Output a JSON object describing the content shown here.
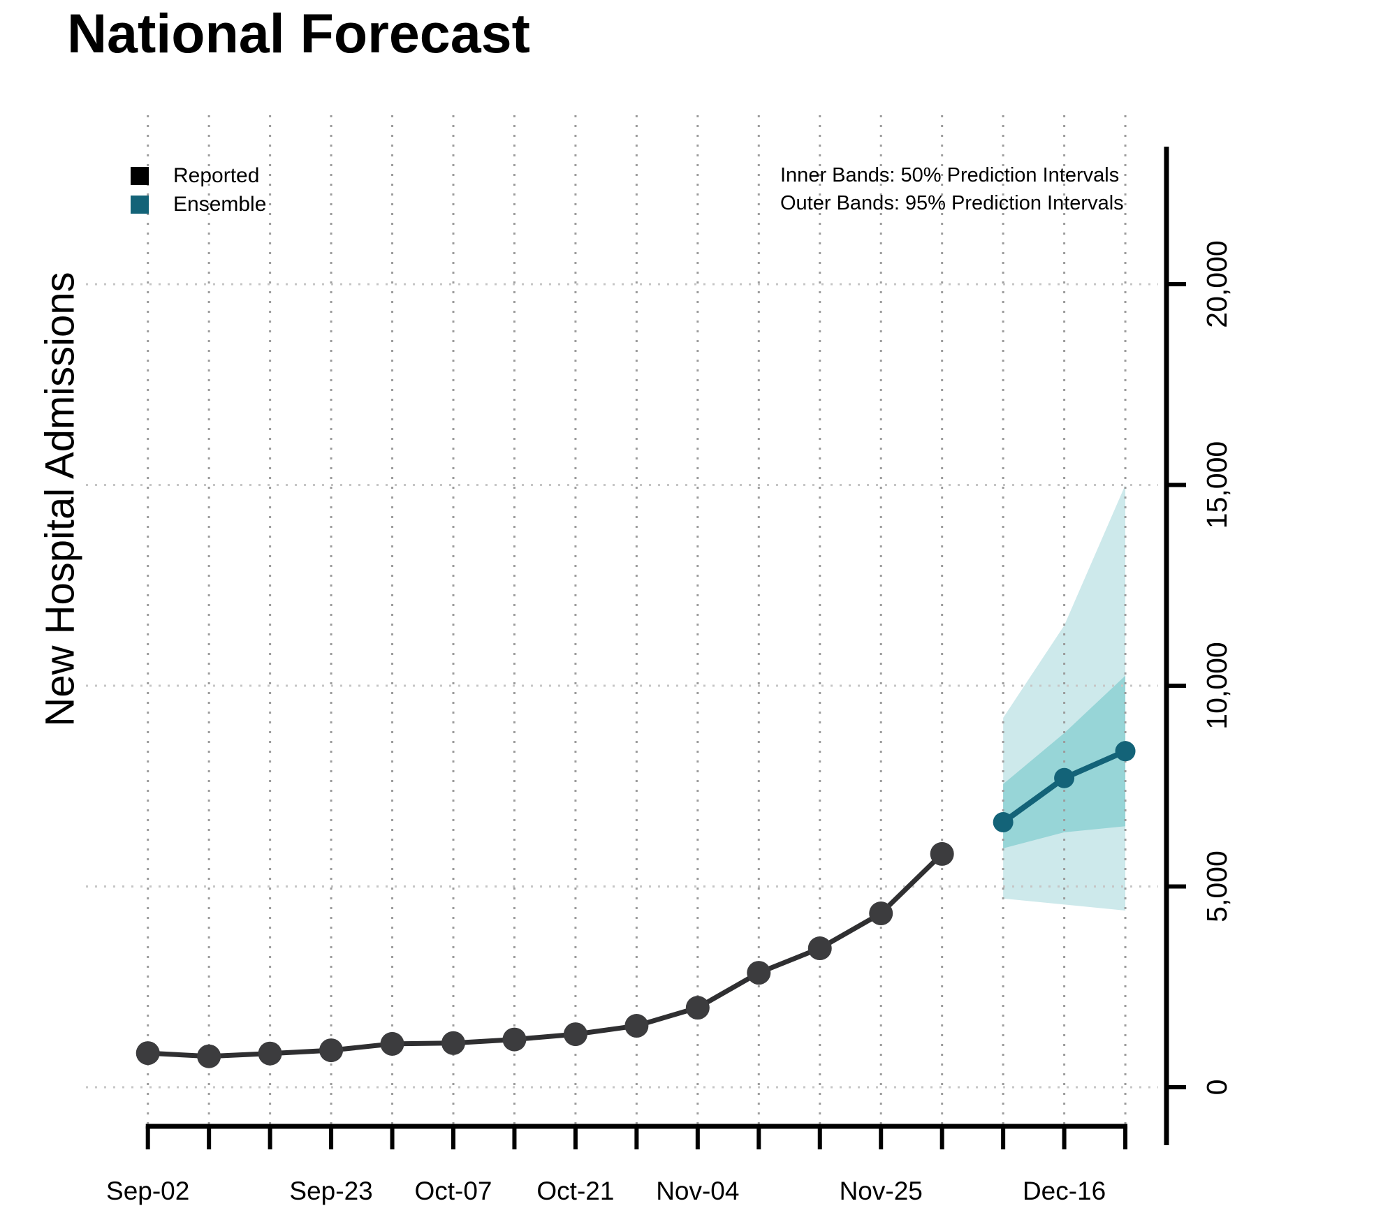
{
  "title": "National Forecast",
  "ylabel": "New Hospital Admissions",
  "legend": [
    {
      "label": "Reported",
      "color": "#000000"
    },
    {
      "label": "Ensemble",
      "color": "#136378"
    }
  ],
  "annotations": [
    "Inner Bands: 50% Prediction Intervals",
    "Outer Bands: 95% Prediction Intervals"
  ],
  "chart_data": {
    "type": "line",
    "title": "National Forecast",
    "xlabel": "",
    "ylabel": "New Hospital Admissions",
    "x_ticks": [
      "Sep-02",
      "Sep-09",
      "Sep-16",
      "Sep-23",
      "Sep-30",
      "Oct-07",
      "Oct-14",
      "Oct-21",
      "Oct-28",
      "Nov-04",
      "Nov-11",
      "Nov-18",
      "Nov-25",
      "Dec-02",
      "Dec-09",
      "Dec-16",
      "Dec-23"
    ],
    "x_label_indices": [
      0,
      3,
      5,
      7,
      9,
      12,
      15
    ],
    "x_label_texts": [
      "Sep-02",
      "Sep-23",
      "Oct-07",
      "Oct-21",
      "Nov-04",
      "Nov-25",
      "Dec-16"
    ],
    "y_ticks": [
      0,
      5000,
      10000,
      15000,
      20000
    ],
    "y_tick_labels": [
      "0",
      "5,000",
      "10,000",
      "15,000",
      "20,000"
    ],
    "ylim": [
      0,
      23400
    ],
    "grid": true,
    "legend_position": "top-left",
    "series": [
      {
        "name": "Reported",
        "color": "#3c3c3e",
        "line_color": "#2f2f31",
        "x": [
          "Sep-02",
          "Sep-09",
          "Sep-16",
          "Sep-23",
          "Sep-30",
          "Oct-07",
          "Oct-14",
          "Oct-21",
          "Oct-28",
          "Nov-04",
          "Nov-11",
          "Nov-18",
          "Nov-25",
          "Dec-02"
        ],
        "values": [
          850,
          770,
          840,
          920,
          1080,
          1100,
          1190,
          1320,
          1530,
          1980,
          2850,
          3460,
          4330,
          5810
        ]
      },
      {
        "name": "Ensemble",
        "color": "#136378",
        "line_color": "#136378",
        "x": [
          "Dec-09",
          "Dec-16",
          "Dec-23"
        ],
        "values": [
          6600,
          7700,
          8370
        ]
      }
    ],
    "bands": [
      {
        "name": "Outer Bands: 95% Prediction Intervals",
        "color": "#cde9eb",
        "x": [
          "Dec-09",
          "Dec-16",
          "Dec-23"
        ],
        "lo": [
          4700,
          4550,
          4400
        ],
        "hi": [
          9200,
          11500,
          15000
        ]
      },
      {
        "name": "Inner Bands: 50% Prediction Intervals",
        "color": "#97d5d7",
        "x": [
          "Dec-09",
          "Dec-16",
          "Dec-23"
        ],
        "lo": [
          5950,
          6350,
          6500
        ],
        "hi": [
          7550,
          8820,
          10250
        ]
      }
    ]
  }
}
